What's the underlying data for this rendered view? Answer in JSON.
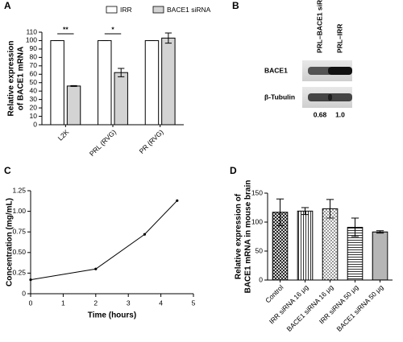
{
  "chart_data": [
    {
      "type": "bar",
      "panel": "A",
      "ylabel": [
        "Relative expression",
        "of BACE1 mRNA"
      ],
      "categories": [
        "L2K",
        "PRL (RVG)",
        "PR (RVG)"
      ],
      "series": [
        {
          "name": "IRR",
          "color": "#ffffff",
          "values": [
            100,
            100,
            100
          ],
          "errors": [
            0,
            0,
            0
          ]
        },
        {
          "name": "BACE1 siRNA",
          "color": "#d3d3d3",
          "values": [
            46,
            62,
            103
          ],
          "errors": [
            0.5,
            5,
            6
          ]
        }
      ],
      "significance": [
        "**",
        "*",
        null
      ],
      "ylim": [
        0,
        110
      ],
      "yticks": [
        0,
        10,
        20,
        30,
        40,
        50,
        60,
        70,
        80,
        90,
        100,
        110
      ]
    },
    {
      "type": "blot",
      "panel": "B",
      "lanes": [
        "PRL–BACE1 siRNA",
        "PRL–IRR"
      ],
      "rows": [
        "BACE1",
        "β-Tubulin"
      ],
      "values": [
        0.68,
        1.0
      ],
      "value_labels": [
        "0.68",
        "1.0"
      ]
    },
    {
      "type": "line",
      "panel": "C",
      "xlabel": "Time (hours)",
      "ylabel": "Concentration (mg/mL)",
      "x": [
        0,
        2,
        3.5,
        4.5
      ],
      "series": [
        {
          "color": "#000000",
          "values": [
            0.17,
            0.3,
            0.72,
            1.13
          ]
        }
      ],
      "xlim": [
        0,
        5
      ],
      "xticks": [
        0,
        1,
        2,
        3,
        4,
        5
      ],
      "ylim": [
        0,
        1.25
      ],
      "yticks": [
        0,
        0.25,
        {
          "value": 0.5,
          "label": "0.50"
        },
        0.75,
        {
          "value": 1,
          "label": "1.00"
        },
        1.25
      ]
    },
    {
      "type": "bar",
      "panel": "D",
      "ylabel": [
        "Relative expression of",
        "BACE1 mRNA in mouse brain"
      ],
      "categories": [
        "Control",
        "IRR siRNA 16 μg",
        "BACE1 siRNA 16 μg",
        "IRR siRNA 50 μg",
        "BACE1 siRNA 50 μg"
      ],
      "series": [
        {
          "values": [
            117,
            119,
            123,
            91,
            83
          ],
          "errors": [
            23,
            6,
            16,
            16,
            2
          ]
        }
      ],
      "ylim": [
        0,
        150
      ],
      "yticks": [
        0,
        50,
        100,
        150
      ]
    }
  ]
}
